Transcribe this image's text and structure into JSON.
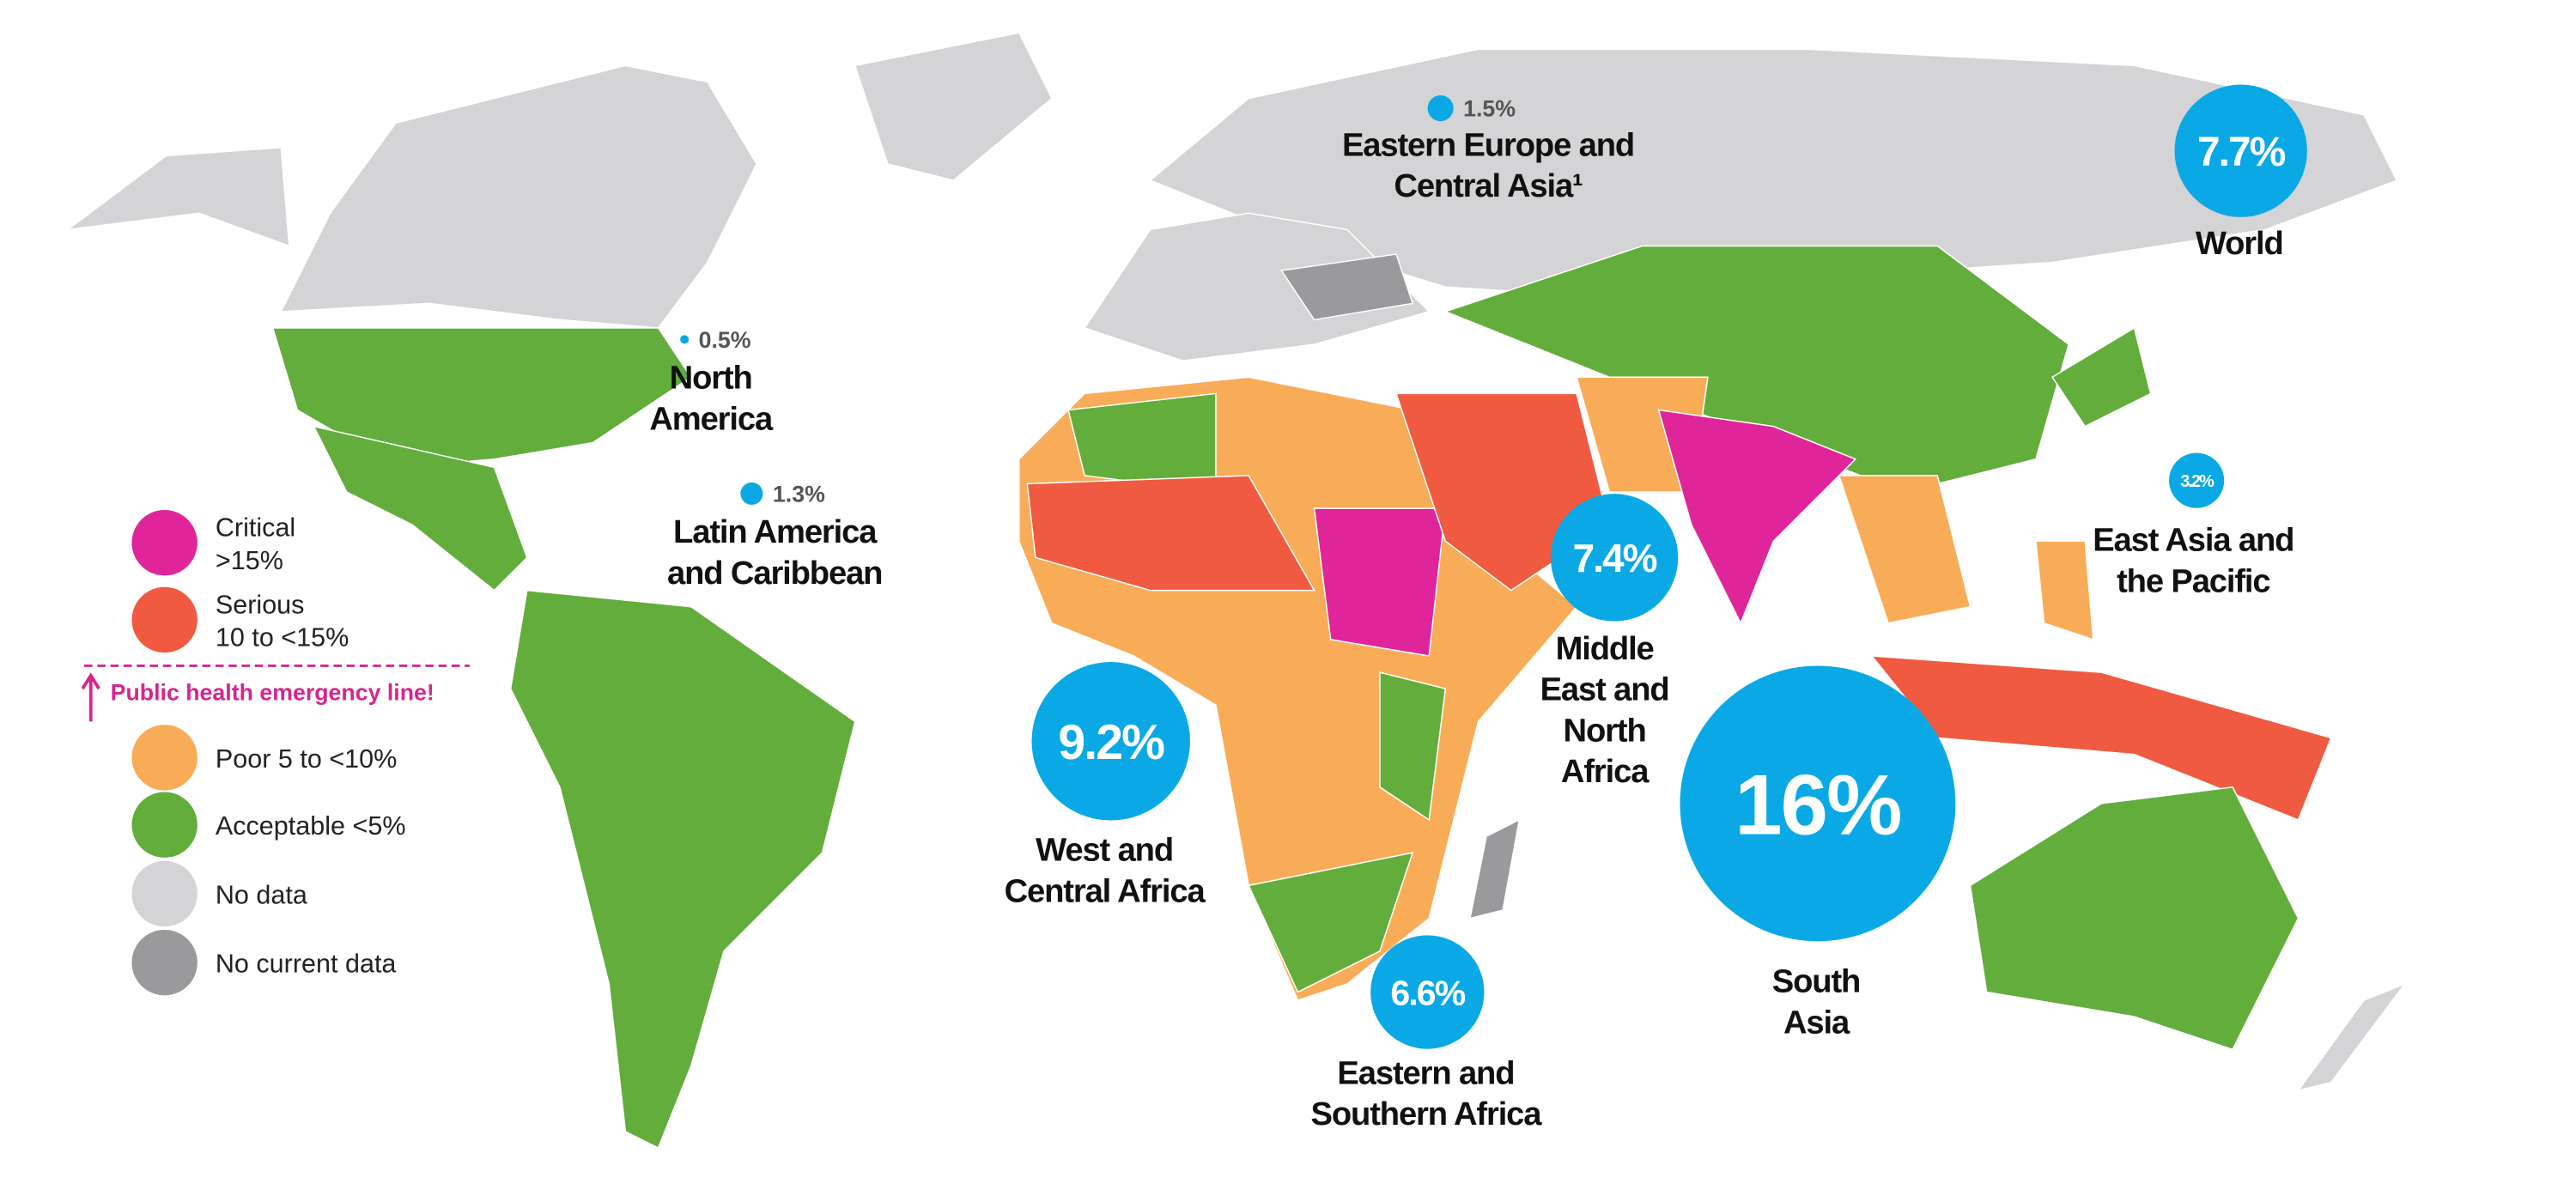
{
  "legend": {
    "items": [
      {
        "label": [
          "Critical",
          ">15%"
        ],
        "color": "#e0259a"
      },
      {
        "label": [
          "Serious",
          "10 to <15%"
        ],
        "color": "#f05a40"
      },
      {
        "label": [
          "Poor 5 to <10%"
        ],
        "color": "#f9ac57"
      },
      {
        "label": [
          "Acceptable <5%"
        ],
        "color": "#62ad3c"
      },
      {
        "label": [
          "No data"
        ],
        "color": "#d4d4d6"
      },
      {
        "label": [
          "No current data"
        ],
        "color": "#9a9a9c"
      }
    ],
    "emergency_line": "Public health emergency line!"
  },
  "bubble_color": "#0aa9e6",
  "regions": [
    {
      "name": [
        "World"
      ],
      "value": 7.7,
      "value_label": "7.7%"
    },
    {
      "name": [
        "Eastern Europe and",
        "Central Asia¹"
      ],
      "value": 1.5,
      "value_label": "1.5%"
    },
    {
      "name": [
        "North",
        "America"
      ],
      "value": 0.5,
      "value_label": "0.5%"
    },
    {
      "name": [
        "Latin America",
        "and Caribbean"
      ],
      "value": 1.3,
      "value_label": "1.3%"
    },
    {
      "name": [
        "East Asia and",
        "the Pacific"
      ],
      "value": 3.2,
      "value_label": "3.2%"
    },
    {
      "name": [
        "Middle",
        "East and",
        "North",
        "Africa"
      ],
      "value": 7.4,
      "value_label": "7.4%"
    },
    {
      "name": [
        "West and",
        "Central Africa"
      ],
      "value": 9.2,
      "value_label": "9.2%"
    },
    {
      "name": [
        "Eastern and",
        "Southern Africa"
      ],
      "value": 6.6,
      "value_label": "6.6%"
    },
    {
      "name": [
        "South",
        "Asia"
      ],
      "value": 16,
      "value_label": "16%"
    }
  ]
}
